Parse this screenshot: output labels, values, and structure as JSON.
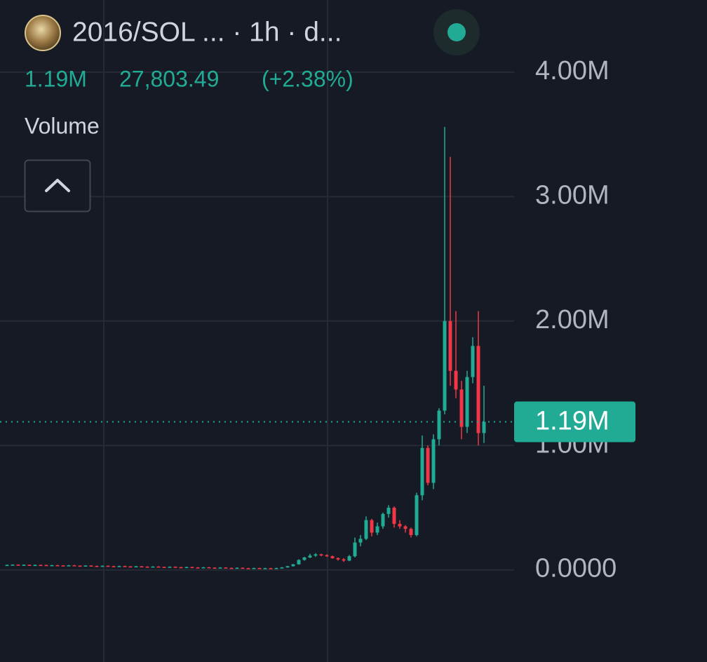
{
  "chart_data": {
    "type": "candlestick",
    "title": "2016/SOL ... · 1h · d...",
    "stats": [
      "27,803.49",
      "(+2.38%)"
    ],
    "indicator": "Volume",
    "last_value": {
      "value": 1190000,
      "label": "1.19M"
    },
    "up_color": "#22ab94",
    "down_color": "#f23645",
    "grid": true,
    "ylim": [
      -740000,
      4580000
    ],
    "yticks": [
      {
        "value": 0,
        "label": "0.0000"
      },
      {
        "value": 1000000,
        "label": "1.00M"
      },
      {
        "value": 2000000,
        "label": "2.00M"
      },
      {
        "value": 3000000,
        "label": "3.00M"
      },
      {
        "value": 4000000,
        "label": "4.00M"
      }
    ],
    "open": [
      36000,
      40000,
      42000,
      39000,
      41000,
      38000,
      40000,
      39000,
      37000,
      38000,
      36000,
      35000,
      37000,
      34000,
      33000,
      35000,
      32000,
      31000,
      33000,
      30000,
      29000,
      31000,
      28000,
      27000,
      29000,
      26000,
      25000,
      27000,
      24000,
      23000,
      25000,
      22000,
      21000,
      23000,
      20000,
      19000,
      21000,
      18000,
      17000,
      19000,
      16000,
      15000,
      17000,
      14000,
      13000,
      15000,
      12000,
      14000,
      13000,
      15000,
      20000,
      30000,
      45000,
      80000,
      100000,
      115000,
      125000,
      118000,
      110000,
      95000,
      85000,
      75000,
      110000,
      220000,
      250000,
      400000,
      300000,
      350000,
      450000,
      500000,
      370000,
      350000,
      330000,
      280000,
      600000,
      980000,
      700000,
      1050000,
      1280000,
      2000000,
      1600000,
      1450000,
      1150000,
      1550000,
      1800000,
      1100000
    ],
    "high": [
      43000,
      45000,
      45000,
      44000,
      44000,
      43000,
      43000,
      42000,
      41000,
      41000,
      39000,
      40000,
      40000,
      37000,
      38000,
      38000,
      35000,
      36000,
      36000,
      33000,
      34000,
      34000,
      31000,
      32000,
      32000,
      29000,
      30000,
      30000,
      27000,
      28000,
      28000,
      25000,
      26000,
      26000,
      23000,
      24000,
      24000,
      21000,
      22000,
      22000,
      19000,
      20000,
      20000,
      17000,
      18000,
      18000,
      17000,
      17000,
      18000,
      23000,
      33000,
      48000,
      85000,
      105000,
      130000,
      135000,
      130000,
      125000,
      115000,
      100000,
      95000,
      120000,
      260000,
      280000,
      430000,
      410000,
      380000,
      460000,
      520000,
      510000,
      400000,
      360000,
      340000,
      620000,
      1080000,
      1000000,
      1090000,
      1300000,
      3560000,
      3320000,
      2080000,
      1520000,
      1600000,
      1870000,
      2080000,
      1480000
    ],
    "low": [
      33000,
      37000,
      36000,
      36000,
      35000,
      35000,
      36000,
      34000,
      34000,
      33000,
      32000,
      32000,
      31000,
      30000,
      30000,
      29000,
      28000,
      28000,
      27000,
      26000,
      26000,
      25000,
      24000,
      24000,
      23000,
      22000,
      22000,
      21000,
      20000,
      20000,
      19000,
      18000,
      18000,
      17000,
      16000,
      16000,
      15000,
      14000,
      14000,
      13000,
      12000,
      12000,
      11000,
      10000,
      10000,
      9000,
      9000,
      10000,
      10000,
      12000,
      17000,
      27000,
      42000,
      75000,
      95000,
      105000,
      110000,
      105000,
      90000,
      75000,
      65000,
      70000,
      100000,
      190000,
      240000,
      270000,
      280000,
      330000,
      420000,
      340000,
      330000,
      300000,
      260000,
      270000,
      560000,
      680000,
      650000,
      1000000,
      1250000,
      1480000,
      1380000,
      1050000,
      1100000,
      1500000,
      1000000,
      1020000
    ],
    "close": [
      40000,
      42000,
      39000,
      41000,
      38000,
      40000,
      39000,
      37000,
      38000,
      36000,
      35000,
      37000,
      34000,
      33000,
      35000,
      32000,
      31000,
      33000,
      30000,
      29000,
      31000,
      28000,
      27000,
      29000,
      26000,
      25000,
      27000,
      24000,
      23000,
      25000,
      22000,
      21000,
      23000,
      20000,
      19000,
      21000,
      18000,
      17000,
      19000,
      16000,
      15000,
      17000,
      14000,
      13000,
      15000,
      12000,
      14000,
      13000,
      15000,
      20000,
      30000,
      45000,
      80000,
      100000,
      115000,
      125000,
      118000,
      110000,
      95000,
      85000,
      75000,
      110000,
      220000,
      250000,
      400000,
      300000,
      350000,
      450000,
      500000,
      370000,
      350000,
      330000,
      280000,
      600000,
      980000,
      700000,
      1050000,
      1280000,
      2000000,
      1600000,
      1450000,
      1150000,
      1550000,
      1800000,
      1100000,
      1190000
    ]
  }
}
